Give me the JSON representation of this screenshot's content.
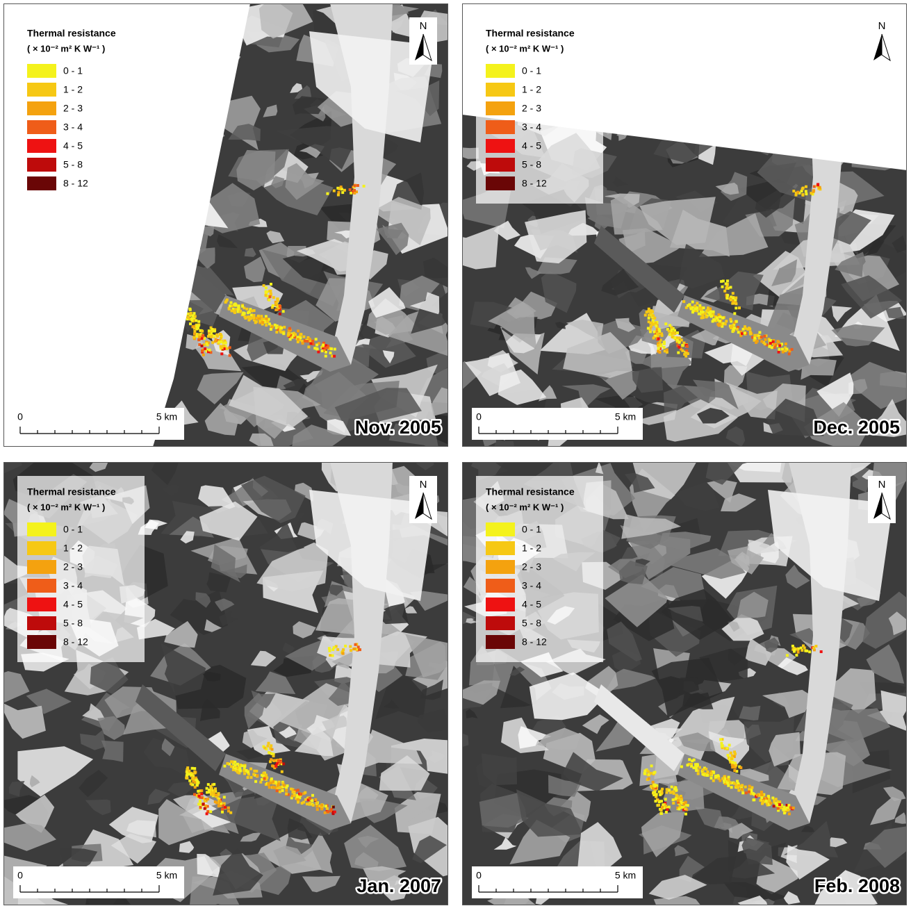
{
  "panels": [
    {
      "date": "Nov. 2005",
      "north": "N",
      "scale": {
        "start": "0",
        "end": "5 km"
      },
      "legend": {
        "title": "Thermal resistance",
        "unit": "( × 10⁻² m² K W⁻¹ )",
        "classes": [
          {
            "label": "0 - 1",
            "color": "#f4f21c"
          },
          {
            "label": "1 - 2",
            "color": "#f6c814"
          },
          {
            "label": "2 - 3",
            "color": "#f4a20f"
          },
          {
            "label": "3 - 4",
            "color": "#ef5d19"
          },
          {
            "label": "4 - 5",
            "color": "#ee1212"
          },
          {
            "label": "5 - 8",
            "color": "#be0b0b"
          },
          {
            "label": "8 - 12",
            "color": "#6a0606"
          }
        ]
      }
    },
    {
      "date": "Dec. 2005",
      "north": "N",
      "scale": {
        "start": "0",
        "end": "5 km"
      },
      "legend": {
        "title": "Thermal resistance",
        "unit": "( × 10⁻² m² K W⁻¹ )",
        "classes": [
          {
            "label": "0 - 1",
            "color": "#f4f21c"
          },
          {
            "label": "1 - 2",
            "color": "#f6c814"
          },
          {
            "label": "2 - 3",
            "color": "#f4a20f"
          },
          {
            "label": "3 - 4",
            "color": "#ef5d19"
          },
          {
            "label": "4 - 5",
            "color": "#ee1212"
          },
          {
            "label": "5 - 8",
            "color": "#be0b0b"
          },
          {
            "label": "8 - 12",
            "color": "#6a0606"
          }
        ]
      }
    },
    {
      "date": "Jan. 2007",
      "north": "N",
      "scale": {
        "start": "0",
        "end": "5 km"
      },
      "legend": {
        "title": "Thermal resistance",
        "unit": "( × 10⁻² m² K W⁻¹ )",
        "classes": [
          {
            "label": "0 - 1",
            "color": "#f4f21c"
          },
          {
            "label": "1 - 2",
            "color": "#f6c814"
          },
          {
            "label": "2 - 3",
            "color": "#f4a20f"
          },
          {
            "label": "3 - 4",
            "color": "#ef5d19"
          },
          {
            "label": "4 - 5",
            "color": "#ee1212"
          },
          {
            "label": "5 - 8",
            "color": "#be0b0b"
          },
          {
            "label": "8 - 12",
            "color": "#6a0606"
          }
        ]
      }
    },
    {
      "date": "Feb. 2008",
      "north": "N",
      "scale": {
        "start": "0",
        "end": "5 km"
      },
      "legend": {
        "title": "Thermal resistance",
        "unit": "( × 10⁻² m² K W⁻¹ )",
        "classes": [
          {
            "label": "0 - 1",
            "color": "#f4f21c"
          },
          {
            "label": "1 - 2",
            "color": "#f6c814"
          },
          {
            "label": "2 - 3",
            "color": "#f4a20f"
          },
          {
            "label": "3 - 4",
            "color": "#ef5d19"
          },
          {
            "label": "4 - 5",
            "color": "#ee1212"
          },
          {
            "label": "5 - 8",
            "color": "#be0b0b"
          },
          {
            "label": "8 - 12",
            "color": "#6a0606"
          }
        ]
      }
    }
  ]
}
